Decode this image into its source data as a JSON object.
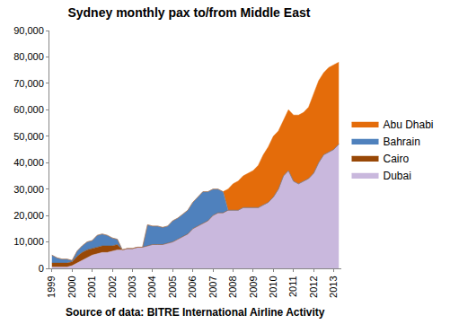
{
  "chart_data": {
    "type": "area",
    "title": "Sydney monthly pax to/from Middle East",
    "annotations": [
      "Source of data: BITRE International Airline Activity"
    ],
    "stacked": true,
    "grid": false,
    "legend": "right",
    "categories": [
      "1999",
      null,
      null,
      null,
      "2000",
      null,
      null,
      null,
      "2001",
      null,
      null,
      null,
      "2002",
      null,
      null,
      null,
      "2003",
      null,
      null,
      null,
      "2004",
      null,
      null,
      null,
      "2005",
      null,
      null,
      null,
      "2006",
      null,
      null,
      null,
      "2007",
      null,
      null,
      null,
      "2008",
      null,
      null,
      null,
      "2009",
      null,
      null,
      null,
      "2010",
      null,
      null,
      null,
      "2011",
      null,
      null,
      null,
      "2012",
      null,
      null,
      null,
      "2013",
      null
    ],
    "series": [
      {
        "name": "Dubai",
        "color": "#c9b8dd",
        "values": [
          500,
          500,
          500,
          500,
          1000,
          2000,
          3000,
          4000,
          5000,
          5500,
          6000,
          6000,
          6500,
          7000,
          7000,
          7500,
          7500,
          8000,
          8000,
          8500,
          9000,
          9000,
          9000,
          9500,
          10000,
          11000,
          12000,
          13000,
          15000,
          16000,
          17000,
          18000,
          20000,
          21000,
          21000,
          22000,
          22000,
          22000,
          23000,
          23000,
          23000,
          23000,
          24000,
          25000,
          27000,
          30000,
          35000,
          37000,
          33000,
          32000,
          33000,
          34000,
          36000,
          40000,
          43000,
          44000,
          45000,
          47000
        ]
      },
      {
        "name": "Cairo",
        "color": "#984807",
        "values": [
          1500,
          1500,
          1500,
          1500,
          1500,
          2500,
          3000,
          3000,
          2500,
          2500,
          2500,
          2500,
          2000,
          2000,
          null,
          null,
          null,
          null,
          null,
          null,
          null,
          null,
          null,
          null,
          null,
          null,
          null,
          null,
          null,
          null,
          null,
          null,
          null,
          null,
          null,
          null,
          null,
          null,
          null,
          null,
          null,
          null,
          null,
          null,
          null,
          null,
          null,
          null,
          null,
          null,
          null,
          null,
          null,
          null,
          null,
          null,
          null,
          null
        ]
      },
      {
        "name": "Bahrain",
        "color": "#4f81bd",
        "values": [
          3000,
          2000,
          1500,
          1500,
          500,
          2000,
          2500,
          3000,
          3000,
          4500,
          4500,
          4000,
          3000,
          2000,
          null,
          null,
          null,
          null,
          null,
          8000,
          7000,
          7000,
          6500,
          6500,
          8000,
          8000,
          8500,
          9000,
          10000,
          11000,
          12000,
          11000,
          10000,
          9000,
          8000,
          null,
          null,
          null,
          null,
          null,
          null,
          null,
          null,
          null,
          null,
          null,
          null,
          null,
          null,
          null,
          null,
          null,
          null,
          null,
          null,
          null,
          null,
          null
        ]
      },
      {
        "name": "Abu Dhabi",
        "color": "#e46c0a",
        "values": [
          null,
          null,
          null,
          null,
          null,
          null,
          null,
          null,
          null,
          null,
          null,
          null,
          null,
          null,
          null,
          null,
          null,
          null,
          null,
          null,
          null,
          null,
          null,
          null,
          null,
          null,
          null,
          null,
          null,
          null,
          null,
          null,
          null,
          null,
          null,
          8000,
          10000,
          11000,
          12000,
          13000,
          14000,
          16000,
          19000,
          21000,
          23000,
          22000,
          21000,
          23000,
          25000,
          26000,
          26000,
          27000,
          30000,
          31000,
          31000,
          32000,
          32000,
          31000
        ]
      }
    ],
    "ylim": [
      0,
      90000
    ],
    "yticks": [
      0,
      {
        "value": 10000,
        "label": "10,000"
      },
      {
        "value": 20000,
        "label": "20,000"
      },
      {
        "value": 30000,
        "label": "30,000"
      },
      {
        "value": 40000,
        "label": "40,000"
      },
      {
        "value": 50000,
        "label": "50,000"
      },
      {
        "value": 60000,
        "label": "60,000"
      },
      {
        "value": 70000,
        "label": "70,000"
      },
      {
        "value": 80000,
        "label": "80,000"
      },
      {
        "value": 90000,
        "label": "90,000"
      }
    ]
  }
}
